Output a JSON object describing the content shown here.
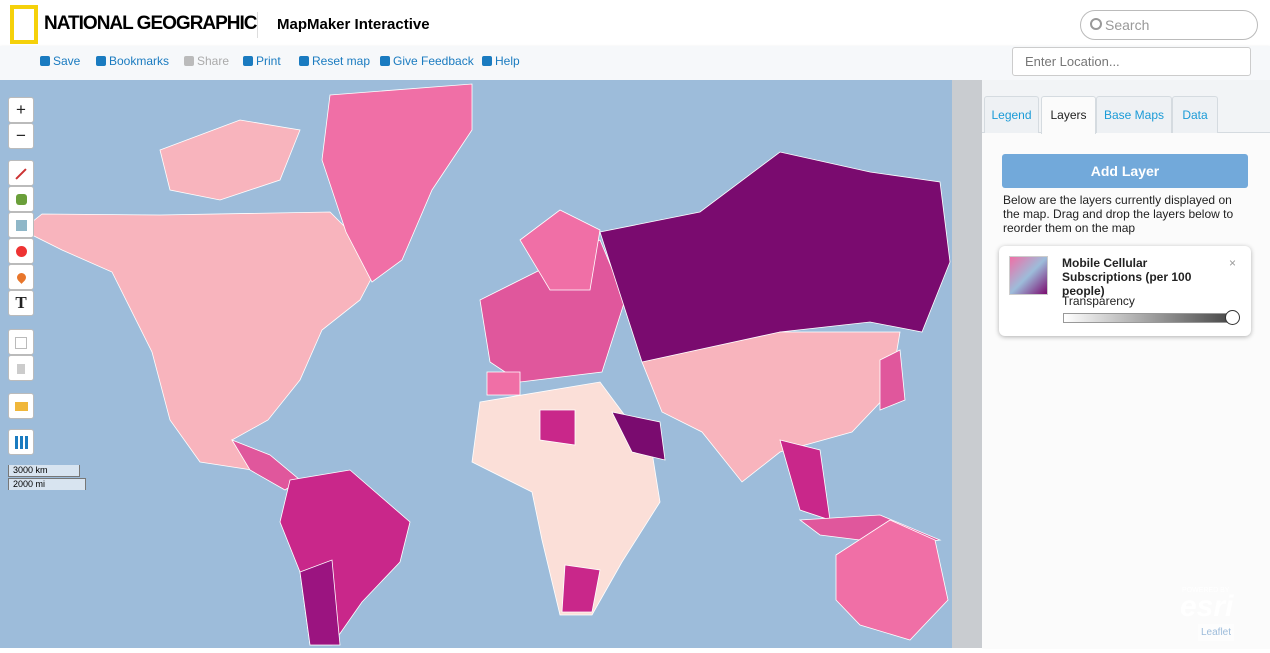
{
  "header": {
    "brand": "NATIONAL GEOGRAPHIC",
    "app_title": "MapMaker Interactive",
    "search_placeholder": "Search"
  },
  "toolbar": {
    "items": [
      "Save",
      "Bookmarks",
      "Share",
      "Print",
      "Reset map",
      "Give Feedback",
      "Help"
    ]
  },
  "location_placeholder": "Enter Location...",
  "map_controls": {
    "zoom_in": "+",
    "zoom_out": "−",
    "text_tool": "T",
    "scale": [
      "3000 km",
      "2000 mi"
    ]
  },
  "panel": {
    "tabs": [
      "Legend",
      "Layers",
      "Base Maps",
      "Data"
    ],
    "add_layer": "Add Layer",
    "description": "Below are the layers currently displayed on the map. Drag and drop the layers below to reorder them on the map",
    "layer": {
      "title": "Mobile Cellular Subscriptions (per 100 people)",
      "close": "×",
      "transparency_label": "Transparency"
    }
  },
  "attribution": {
    "powered_by": "POWERED BY",
    "esri": "esri",
    "leaflet": "Leaflet"
  }
}
